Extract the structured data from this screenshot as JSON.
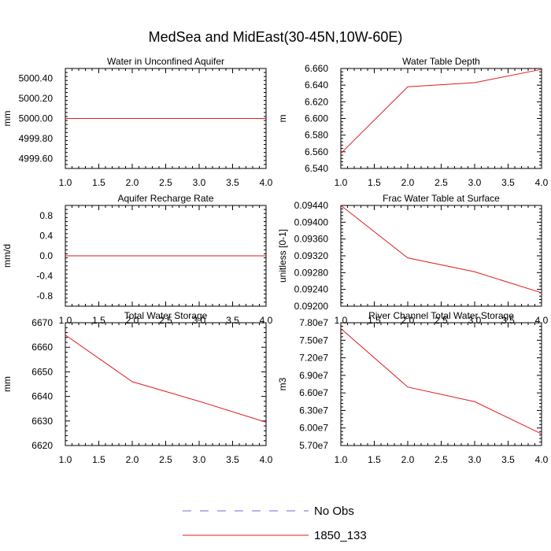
{
  "figure": {
    "title": "MedSea and MidEast(30-45N,10W-60E)"
  },
  "legend": [
    {
      "label": "No Obs",
      "color": "#6b6bd6",
      "dash": true
    },
    {
      "label": "1850_133",
      "color": "#e31a1c",
      "dash": false
    }
  ],
  "chart_data": [
    {
      "type": "line",
      "title": "Water in Unconfined Aquifer",
      "ylabel": "mm",
      "x": [
        1,
        2,
        3,
        4
      ],
      "xlim": [
        1.0,
        4.0
      ],
      "xticks": [
        "1.0",
        "1.5",
        "2.0",
        "2.5",
        "3.0",
        "3.5",
        "4.0"
      ],
      "ylim": [
        4999.5,
        5000.5
      ],
      "yticks": [
        "4999.60",
        "4999.80",
        "5000.00",
        "5000.20",
        "5000.40"
      ],
      "yticks_values": [
        4999.6,
        4999.8,
        5000.0,
        5000.2,
        5000.4
      ],
      "series": [
        {
          "name": "1850_133",
          "values": [
            5000.0,
            5000.0,
            5000.0,
            5000.0
          ]
        }
      ]
    },
    {
      "type": "line",
      "title": "Water Table Depth",
      "ylabel": "m",
      "x": [
        1,
        2,
        3,
        4
      ],
      "xlim": [
        1.0,
        4.0
      ],
      "xticks": [
        "1.0",
        "1.5",
        "2.0",
        "2.5",
        "3.0",
        "3.5",
        "4.0"
      ],
      "ylim": [
        6.54,
        6.66
      ],
      "yticks": [
        "6.540",
        "6.560",
        "6.580",
        "6.600",
        "6.620",
        "6.640",
        "6.660"
      ],
      "yticks_values": [
        6.54,
        6.56,
        6.58,
        6.6,
        6.62,
        6.64,
        6.66
      ],
      "series": [
        {
          "name": "1850_133",
          "values": [
            6.558,
            6.638,
            6.643,
            6.659
          ]
        }
      ]
    },
    {
      "type": "line",
      "title": "Aquifer Recharge Rate",
      "ylabel": "mm/d",
      "x": [
        1,
        2,
        3,
        4
      ],
      "xlim": [
        1.0,
        4.0
      ],
      "xticks": [
        "1.0",
        "1.5",
        "2.0",
        "2.5",
        "3.0",
        "3.5",
        "4.0"
      ],
      "ylim": [
        -1.0,
        1.0
      ],
      "yticks": [
        "-0.8",
        "-0.4",
        "0.0",
        "0.4",
        "0.8"
      ],
      "yticks_values": [
        -0.8,
        -0.4,
        0.0,
        0.4,
        0.8
      ],
      "series": [
        {
          "name": "1850_133",
          "values": [
            0.0,
            0.0,
            0.0,
            0.0
          ]
        }
      ]
    },
    {
      "type": "line",
      "title": "Frac Water Table at Surface",
      "ylabel": "unitless [0-1]",
      "x": [
        1,
        2,
        3,
        4
      ],
      "xlim": [
        1.0,
        4.0
      ],
      "xticks": [
        "1.0",
        "1.5",
        "2.0",
        "2.5",
        "3.0",
        "3.5",
        "4.0"
      ],
      "ylim": [
        0.092,
        0.0944
      ],
      "yticks": [
        "0.09200",
        "0.09240",
        "0.09280",
        "0.09320",
        "0.09360",
        "0.09400",
        "0.09440"
      ],
      "yticks_values": [
        0.092,
        0.0924,
        0.0928,
        0.0932,
        0.0936,
        0.094,
        0.0944
      ],
      "series": [
        {
          "name": "1850_133",
          "values": [
            0.0944,
            0.09315,
            0.09282,
            0.09232
          ]
        }
      ]
    },
    {
      "type": "line",
      "title": "Total Water Storage",
      "ylabel": "mm",
      "x": [
        1,
        2,
        3,
        4
      ],
      "xlim": [
        1.0,
        4.0
      ],
      "xticks": [
        "1.0",
        "1.5",
        "2.0",
        "2.5",
        "3.0",
        "3.5",
        "4.0"
      ],
      "ylim": [
        6620,
        6670
      ],
      "yticks": [
        "6620",
        "6630",
        "6640",
        "6650",
        "6660",
        "6670"
      ],
      "yticks_values": [
        6620,
        6630,
        6640,
        6650,
        6660,
        6670
      ],
      "series": [
        {
          "name": "1850_133",
          "values": [
            6665,
            6646,
            6638,
            6629.5
          ]
        }
      ]
    },
    {
      "type": "line",
      "title": "River Channel Total Water Storage",
      "ylabel": "m3",
      "x": [
        1,
        2,
        3,
        4
      ],
      "xlim": [
        1.0,
        4.0
      ],
      "xticks": [
        "1.0",
        "1.5",
        "2.0",
        "2.5",
        "3.0",
        "3.5",
        "4.0"
      ],
      "ylim": [
        57000000,
        78000000
      ],
      "yticks": [
        "5.70e7",
        "6.00e7",
        "6.30e7",
        "6.60e7",
        "6.90e7",
        "7.20e7",
        "7.50e7",
        "7.80e7"
      ],
      "yticks_values": [
        57000000,
        60000000,
        63000000,
        66000000,
        69000000,
        72000000,
        75000000,
        78000000
      ],
      "series": [
        {
          "name": "1850_133",
          "values": [
            77000000,
            67000000,
            64500000,
            59000000
          ]
        }
      ]
    }
  ]
}
